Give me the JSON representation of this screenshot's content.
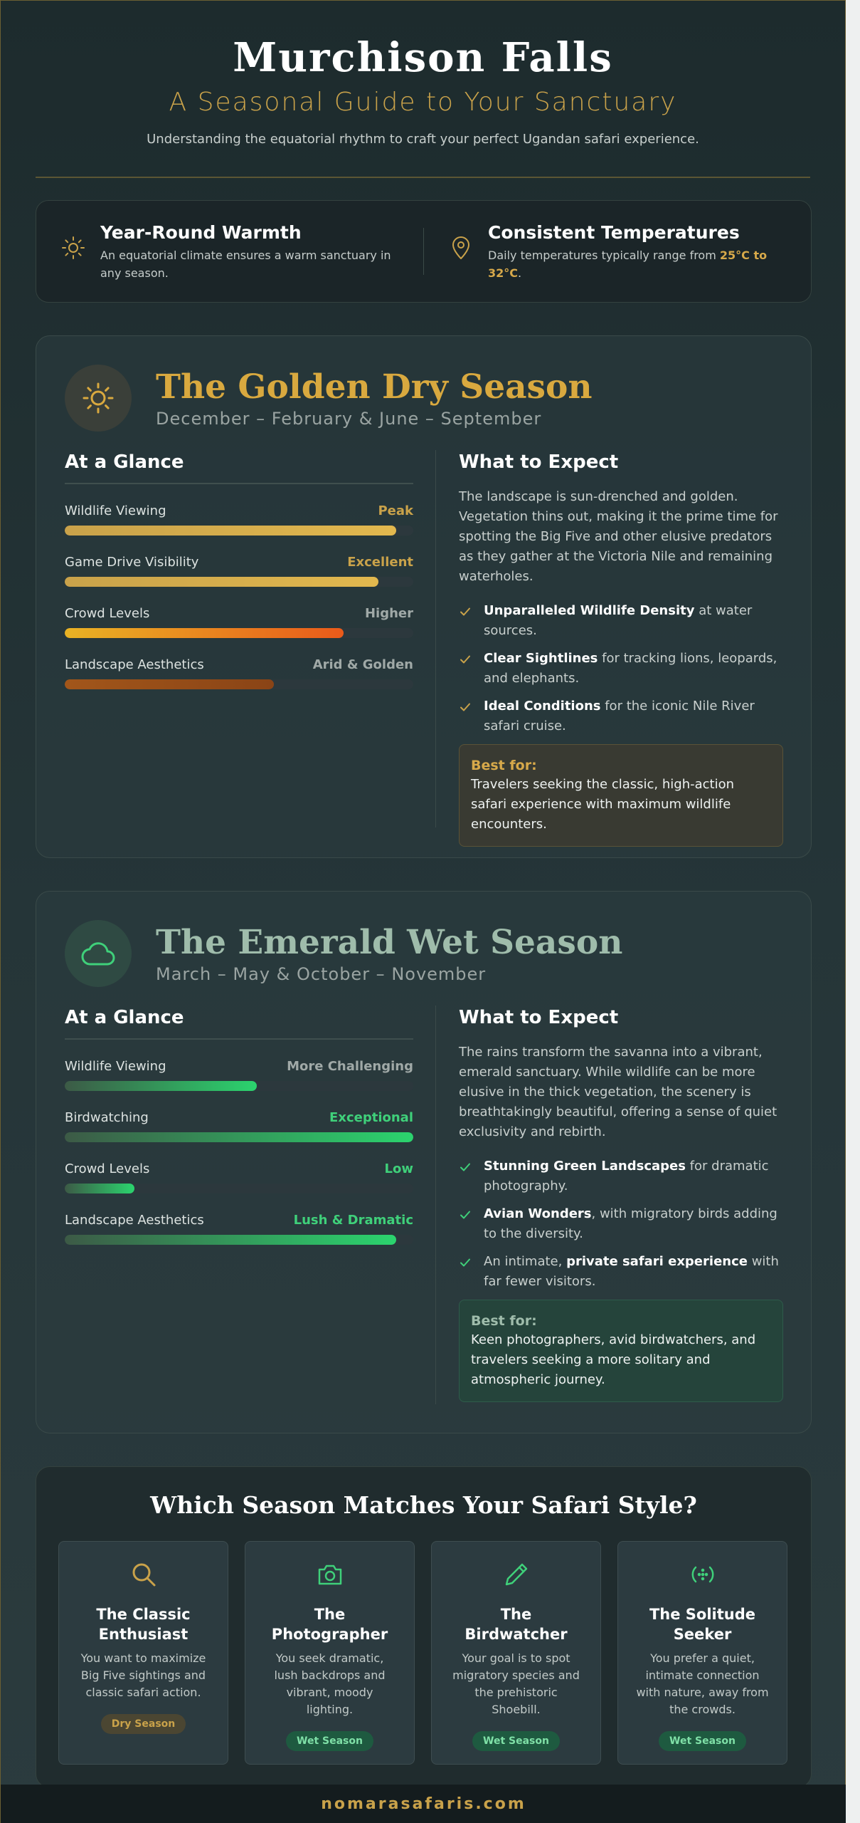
{
  "header": {
    "title": "Murchison Falls",
    "subtitle": "A Seasonal Guide to Your Sanctuary",
    "description": "Understanding the equatorial rhythm to craft your perfect Ugandan safari experience."
  },
  "climate": [
    {
      "icon": "sun-icon",
      "title": "Year-Round Warmth",
      "text": "An equatorial climate ensures a warm sanctuary in any season."
    },
    {
      "icon": "location-pin-icon",
      "title": "Consistent Temperatures",
      "text_prefix": "Daily temperatures typically range from ",
      "highlight": "25°C to 32°C",
      "text_suffix": "."
    }
  ],
  "dry_season": {
    "name": "The Golden Dry Season",
    "months": "December – February & June – September",
    "glance_title": "At a Glance",
    "metrics": [
      {
        "label": "Wildlife Viewing",
        "value": "Peak",
        "percent": 95
      },
      {
        "label": "Game Drive Visibility",
        "value": "Excellent",
        "percent": 90
      },
      {
        "label": "Crowd Levels",
        "value": "Higher",
        "percent": 80
      },
      {
        "label": "Landscape Aesthetics",
        "value": "Arid & Golden",
        "percent": 60
      }
    ],
    "expect_title": "What to Expect",
    "expect_body": "The landscape is sun-drenched and golden. Vegetation thins out, making it the prime time for spotting the Big Five and other elusive predators as they gather at the Victoria Nile and remaining waterholes.",
    "bullets": [
      {
        "bold": "Unparalleled Wildlife Density",
        "rest": " at water sources."
      },
      {
        "bold": "Clear Sightlines",
        "rest": " for tracking lions, leopards, and elephants."
      },
      {
        "bold": "Ideal Conditions",
        "rest": " for the iconic Nile River safari cruise."
      }
    ],
    "best_title": "Best for:",
    "best_text": "Travelers seeking the classic, high-action safari experience with maximum wildlife encounters.",
    "colors": {
      "accent": "#d9a93f"
    }
  },
  "wet_season": {
    "name": "The Emerald Wet Season",
    "months": "March – May & October – November",
    "glance_title": "At a Glance",
    "metrics": [
      {
        "label": "Wildlife Viewing",
        "value": "More Challenging",
        "percent": 55
      },
      {
        "label": "Birdwatching",
        "value": "Exceptional",
        "percent": 100
      },
      {
        "label": "Crowd Levels",
        "value": "Low",
        "percent": 20
      },
      {
        "label": "Landscape Aesthetics",
        "value": "Lush & Dramatic",
        "percent": 95
      }
    ],
    "expect_title": "What to Expect",
    "expect_body": "The rains transform the savanna into a vibrant, emerald sanctuary. While wildlife can be more elusive in the thick vegetation, the scenery is breathtakingly beautiful, offering a sense of quiet exclusivity and rebirth.",
    "bullets": [
      {
        "pre": "",
        "bold": "Stunning Green Landscapes",
        "rest": " for dramatic photography."
      },
      {
        "pre": "",
        "bold": "Avian Wonders",
        "rest": ", with migratory birds adding to the diversity."
      },
      {
        "pre": "An intimate, ",
        "bold": "private safari experience",
        "rest": " with far fewer visitors."
      }
    ],
    "best_title": "Best for:",
    "best_text": "Keen photographers, avid birdwatchers, and travelers seeking a more solitary and atmospheric journey.",
    "colors": {
      "accent": "#3fd07a"
    }
  },
  "match": {
    "title": "Which Season Matches Your Safari Style?",
    "personas": [
      {
        "icon": "search-icon",
        "name": "The Classic Enthusiast",
        "text": "You want to maximize Big Five sightings and classic safari action.",
        "chip": "Dry Season"
      },
      {
        "icon": "camera-icon",
        "name": "The Photographer",
        "text": "You seek dramatic, lush backdrops and vibrant, moody lighting.",
        "chip": "Wet Season"
      },
      {
        "icon": "feather-icon",
        "name": "The Birdwatcher",
        "text": "Your goal is to spot migratory species and the prehistoric Shoebill.",
        "chip": "Wet Season"
      },
      {
        "icon": "solitude-icon",
        "name": "The Solitude Seeker",
        "text": "You prefer a quiet, intimate connection with nature, away from the crowds.",
        "chip": "Wet Season"
      }
    ]
  },
  "footer": {
    "text": "nomarasafaris.com"
  }
}
